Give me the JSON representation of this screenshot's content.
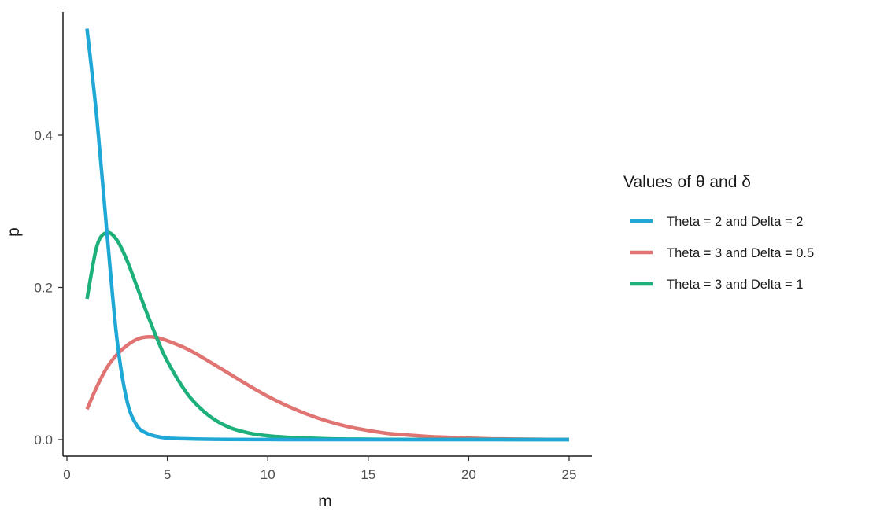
{
  "chart_data": {
    "type": "line",
    "xlabel": "m",
    "ylabel": "p",
    "xlim": [
      0,
      25
    ],
    "ylim": [
      0,
      0.55
    ],
    "x_ticks": [
      0,
      5,
      10,
      15,
      20,
      25
    ],
    "y_ticks": [
      0.0,
      0.2,
      0.4
    ],
    "x_tick_labels": [
      "0",
      "5",
      "10",
      "15",
      "20",
      "25"
    ],
    "y_tick_labels": [
      "0.0",
      "0.2",
      "0.4"
    ],
    "grid": false,
    "legend": {
      "title": "Values of θ and δ",
      "placement": "right"
    },
    "series": [
      {
        "name": "Theta = 2 and Delta = 2",
        "color": "#1fa8d6",
        "x": [
          1,
          1.5,
          2,
          2.5,
          3,
          3.5,
          4,
          4.5,
          5,
          6,
          7,
          8,
          10,
          12,
          15,
          20,
          25
        ],
        "y": [
          0.54,
          0.42,
          0.27,
          0.13,
          0.05,
          0.018,
          0.008,
          0.004,
          0.002,
          0.001,
          0.0005,
          0.0002,
          0.0001,
          0,
          0,
          0,
          0
        ]
      },
      {
        "name": "Theta = 3 and Delta = 0.5",
        "color": "#e07472",
        "x": [
          1,
          1.5,
          2,
          2.5,
          3,
          3.5,
          4,
          4.5,
          5,
          6,
          7,
          8,
          9,
          10,
          11,
          12,
          13,
          14,
          15,
          16,
          17,
          18,
          19,
          20,
          21,
          22,
          23,
          24,
          25
        ],
        "y": [
          0.04,
          0.07,
          0.095,
          0.112,
          0.124,
          0.132,
          0.135,
          0.134,
          0.13,
          0.119,
          0.104,
          0.088,
          0.072,
          0.057,
          0.044,
          0.033,
          0.024,
          0.017,
          0.012,
          0.008,
          0.006,
          0.004,
          0.003,
          0.002,
          0.001,
          0.0008,
          0.0005,
          0.0003,
          0.0002
        ]
      },
      {
        "name": "Theta = 3 and Delta = 1",
        "color": "#1db07a",
        "x": [
          1,
          1.5,
          2,
          2.5,
          3,
          3.5,
          4,
          4.5,
          5,
          6,
          7,
          8,
          9,
          10,
          11,
          12,
          13,
          14,
          15,
          16,
          18,
          20,
          25
        ],
        "y": [
          0.185,
          0.255,
          0.272,
          0.262,
          0.235,
          0.2,
          0.165,
          0.132,
          0.103,
          0.06,
          0.033,
          0.017,
          0.009,
          0.005,
          0.003,
          0.002,
          0.001,
          0.0007,
          0.0005,
          0.0003,
          0.0001,
          0.0001,
          0
        ]
      }
    ]
  }
}
